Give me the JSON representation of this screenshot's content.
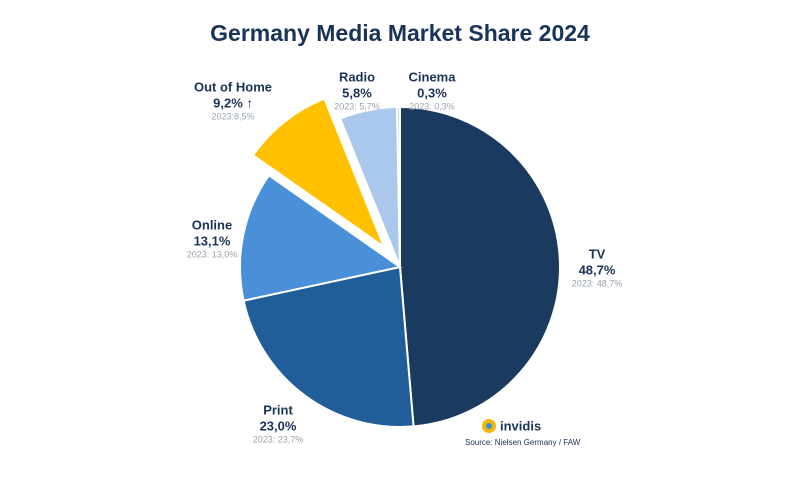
{
  "chart_data": {
    "type": "pie",
    "title": "Germany Media Market Share 2024",
    "categories": [
      "TV",
      "Print",
      "Online",
      "Out of Home",
      "Radio",
      "Cinema"
    ],
    "values": [
      48.7,
      23.0,
      13.1,
      9.2,
      5.8,
      0.3
    ],
    "value_labels": [
      "48,7%",
      "23,0%",
      "13,1%",
      "9,2% ↑",
      "5,8%",
      "0,3%"
    ],
    "previous_labels": [
      "2023: 48,7%",
      "2023: 23,7%",
      "2023: 13,0%",
      "2023:8,5%",
      "2023: 5,7%",
      "2023: 0,3%"
    ],
    "colors": [
      "#1a3a5f",
      "#215d99",
      "#4a90d9",
      "#ffc000",
      "#a9c8ec",
      "#c8d5e3"
    ],
    "explode": [
      0,
      0,
      0,
      0.16,
      0,
      0
    ],
    "logo": "invidis",
    "source": "Source: Nielsen Germany / FAW"
  }
}
